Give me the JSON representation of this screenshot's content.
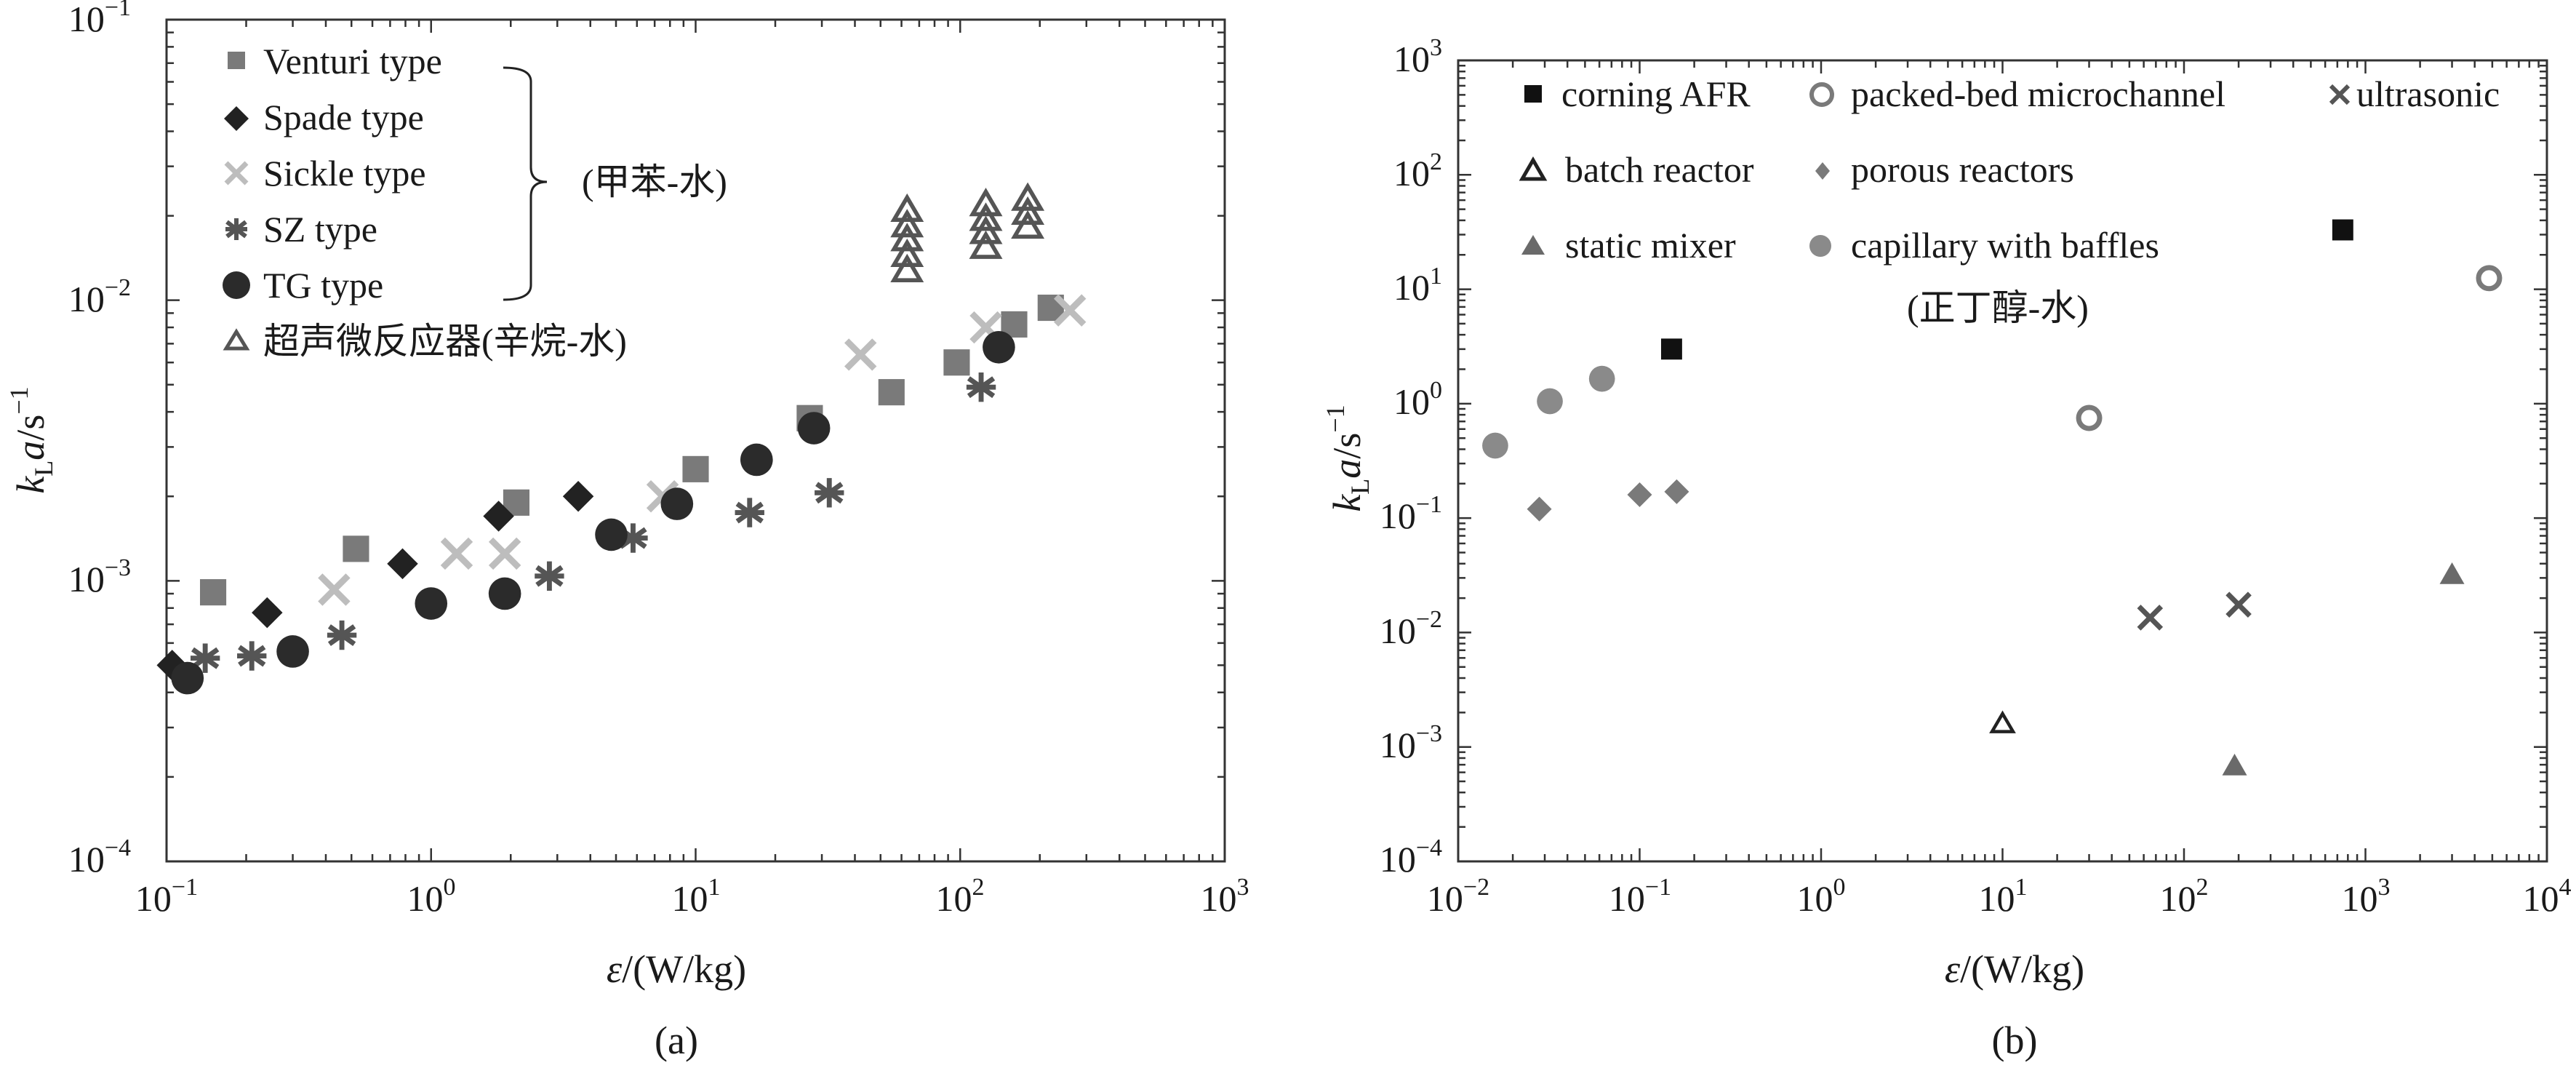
{
  "chart_data": [
    {
      "type": "scatter",
      "panel_label": "(a)",
      "xlabel_symbol": "ε",
      "xlabel_unit": "/(W/kg)",
      "ylabel_k": "k",
      "ylabel_sub": "L",
      "ylabel_a": "a",
      "ylabel_unit": "/s",
      "ylabel_sup": "−1",
      "x_scale": "log",
      "y_scale": "log",
      "xlim": [
        0.1,
        1000
      ],
      "ylim": [
        0.0001,
        0.1
      ],
      "x_ticks": [
        {
          "base": "10",
          "exp": "−1"
        },
        {
          "base": "10",
          "exp": "0"
        },
        {
          "base": "10",
          "exp": "1"
        },
        {
          "base": "10",
          "exp": "2"
        },
        {
          "base": "10",
          "exp": "3"
        }
      ],
      "y_ticks": [
        {
          "base": "10",
          "exp": "−4"
        },
        {
          "base": "10",
          "exp": "−3"
        },
        {
          "base": "10",
          "exp": "−2"
        },
        {
          "base": "10",
          "exp": "−1"
        }
      ],
      "grid": false,
      "legend_placement": "top-left",
      "bracket_label": "(甲苯-水)",
      "series": [
        {
          "name": "Venturi type",
          "marker": "square",
          "color": "#7a7a7a",
          "points": [
            [
              0.15,
              0.00091
            ],
            [
              0.52,
              0.0013
            ],
            [
              2.1,
              0.0019
            ],
            [
              10,
              0.0025
            ],
            [
              27,
              0.0038
            ],
            [
              55,
              0.0047
            ],
            [
              97,
              0.006
            ],
            [
              160,
              0.0082
            ],
            [
              220,
              0.0094
            ]
          ]
        },
        {
          "name": "Spade type",
          "marker": "diamond",
          "color": "#222222",
          "points": [
            [
              0.105,
              0.0005
            ],
            [
              0.24,
              0.00077
            ],
            [
              0.78,
              0.00115
            ],
            [
              1.8,
              0.0017
            ],
            [
              3.6,
              0.002
            ]
          ]
        },
        {
          "name": "Sickle type",
          "marker": "x",
          "color": "#bdbdbd",
          "points": [
            [
              0.43,
              0.00093
            ],
            [
              1.25,
              0.00125
            ],
            [
              1.9,
              0.00125
            ],
            [
              7.5,
              0.002
            ],
            [
              42,
              0.0064
            ],
            [
              125,
              0.008
            ],
            [
              260,
              0.0092
            ]
          ]
        },
        {
          "name": "SZ type",
          "marker": "asterisk",
          "color": "#555555",
          "points": [
            [
              0.14,
              0.00053
            ],
            [
              0.21,
              0.00054
            ],
            [
              0.46,
              0.00064
            ],
            [
              2.8,
              0.00104
            ],
            [
              5.8,
              0.00142
            ],
            [
              16,
              0.00175
            ],
            [
              32,
              0.00206
            ],
            [
              120,
              0.0049
            ]
          ]
        },
        {
          "name": "TG type",
          "marker": "circle",
          "color": "#2b2b2b",
          "points": [
            [
              0.12,
              0.00045
            ],
            [
              0.3,
              0.00056
            ],
            [
              1.0,
              0.00083
            ],
            [
              1.9,
              0.0009
            ],
            [
              4.8,
              0.00146
            ],
            [
              8.5,
              0.00188
            ],
            [
              17,
              0.0027
            ],
            [
              28,
              0.0035
            ],
            [
              140,
              0.0068
            ]
          ]
        },
        {
          "name": "超声微反应器(辛烷-水)",
          "marker": "triangle-open",
          "color": "#555555",
          "points": [
            [
              63,
              0.0128
            ],
            [
              63,
              0.0145
            ],
            [
              63,
              0.0165
            ],
            [
              63,
              0.0185
            ],
            [
              63,
              0.021
            ],
            [
              125,
              0.0155
            ],
            [
              125,
              0.0175
            ],
            [
              125,
              0.0195
            ],
            [
              125,
              0.022
            ],
            [
              180,
              0.0183
            ],
            [
              180,
              0.0205
            ],
            [
              180,
              0.023
            ]
          ]
        }
      ]
    },
    {
      "type": "scatter",
      "panel_label": "(b)",
      "xlabel_symbol": "ε",
      "xlabel_unit": "/(W/kg)",
      "ylabel_k": "k",
      "ylabel_sub": "L",
      "ylabel_a": "a",
      "ylabel_unit": "/s",
      "ylabel_sup": "−1",
      "x_scale": "log",
      "y_scale": "log",
      "xlim": [
        0.01,
        10000
      ],
      "ylim": [
        0.0001,
        1000
      ],
      "x_ticks": [
        {
          "base": "10",
          "exp": "−2"
        },
        {
          "base": "10",
          "exp": "−1"
        },
        {
          "base": "10",
          "exp": "0"
        },
        {
          "base": "10",
          "exp": "1"
        },
        {
          "base": "10",
          "exp": "2"
        },
        {
          "base": "10",
          "exp": "3"
        },
        {
          "base": "10",
          "exp": "4"
        }
      ],
      "y_ticks": [
        {
          "base": "10",
          "exp": "−4"
        },
        {
          "base": "10",
          "exp": "−3"
        },
        {
          "base": "10",
          "exp": "−2"
        },
        {
          "base": "10",
          "exp": "−1"
        },
        {
          "base": "10",
          "exp": "0"
        },
        {
          "base": "10",
          "exp": "1"
        },
        {
          "base": "10",
          "exp": "2"
        },
        {
          "base": "10",
          "exp": "3"
        }
      ],
      "grid": false,
      "legend_placement": "top",
      "legend_note": "(正丁醇-水)",
      "series": [
        {
          "name": "corning AFR",
          "marker": "square",
          "color": "#111111",
          "points": [
            [
              0.15,
              3.0
            ],
            [
              750,
              33
            ]
          ]
        },
        {
          "name": "packed-bed microchannel",
          "marker": "circle-open",
          "color": "#7a7a7a",
          "points": [
            [
              30,
              0.75
            ],
            [
              4800,
              12.5
            ]
          ]
        },
        {
          "name": "ultrasonic",
          "marker": "x",
          "color": "#555555",
          "points": [
            [
              65,
              0.0135
            ],
            [
              200,
              0.0175
            ]
          ]
        },
        {
          "name": "batch reactor",
          "marker": "triangle-open",
          "color": "#222222",
          "points": [
            [
              10,
              0.0016
            ]
          ]
        },
        {
          "name": "porous reactors",
          "marker": "diamond",
          "color": "#7a7a7a",
          "points": [
            [
              0.028,
              0.12
            ],
            [
              0.1,
              0.16
            ],
            [
              0.16,
              0.17
            ]
          ]
        },
        {
          "name": "static mixer",
          "marker": "triangle",
          "color": "#6a6a6a",
          "points": [
            [
              190,
              0.00068
            ],
            [
              3000,
              0.032
            ]
          ]
        },
        {
          "name": "capillary with baffles",
          "marker": "circle",
          "color": "#8a8a8a",
          "points": [
            [
              0.016,
              0.43
            ],
            [
              0.032,
              1.05
            ],
            [
              0.062,
              1.65
            ]
          ]
        }
      ]
    }
  ]
}
